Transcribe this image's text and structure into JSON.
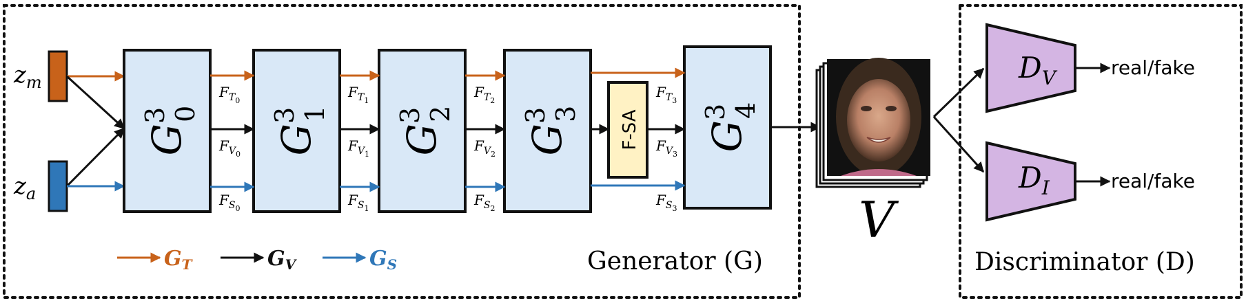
{
  "colors": {
    "orange": "#c8621a",
    "blue": "#2f77b8",
    "generator_block": "#d9e8f7",
    "fsa_block": "#fff2c4",
    "discriminator_block": "#d4b5e3"
  },
  "inputs": {
    "zm": {
      "base": "z",
      "sub": "m"
    },
    "za": {
      "base": "z",
      "sub": "a"
    }
  },
  "generator_blocks": [
    {
      "base": "G",
      "sup": "3",
      "sub": "0"
    },
    {
      "base": "G",
      "sup": "3",
      "sub": "1"
    },
    {
      "base": "G",
      "sup": "3",
      "sub": "2"
    },
    {
      "base": "G",
      "sup": "3",
      "sub": "3"
    },
    {
      "base": "G",
      "sup": "3",
      "sub": "4"
    }
  ],
  "fsa_label": "F-SA",
  "features": {
    "top": [
      {
        "base": "F",
        "sub": "T",
        "subsub": "0"
      },
      {
        "base": "F",
        "sub": "T",
        "subsub": "1"
      },
      {
        "base": "F",
        "sub": "T",
        "subsub": "2"
      },
      {
        "base": "F",
        "sub": "T",
        "subsub": "3"
      }
    ],
    "mid": [
      {
        "base": "F",
        "sub": "V",
        "subsub": "0"
      },
      {
        "base": "F",
        "sub": "V",
        "subsub": "1"
      },
      {
        "base": "F",
        "sub": "V",
        "subsub": "2"
      },
      {
        "base": "F",
        "sub": "V",
        "subsub": "3"
      }
    ],
    "bot": [
      {
        "base": "F",
        "sub": "S",
        "subsub": "0"
      },
      {
        "base": "F",
        "sub": "S",
        "subsub": "1"
      },
      {
        "base": "F",
        "sub": "S",
        "subsub": "2"
      },
      {
        "base": "F",
        "sub": "S",
        "subsub": "3"
      }
    ]
  },
  "legend": [
    {
      "base": "G",
      "sub": "T",
      "color": "orange"
    },
    {
      "base": "G",
      "sub": "V",
      "color": "black"
    },
    {
      "base": "G",
      "sub": "S",
      "color": "blue"
    }
  ],
  "generator_label": "Generator (G)",
  "video_label": "V",
  "discriminators": [
    {
      "base": "D",
      "sub": "V",
      "output": "real/fake"
    },
    {
      "base": "D",
      "sub": "I",
      "output": "real/fake"
    }
  ],
  "discriminator_label": "Discriminator (D)"
}
